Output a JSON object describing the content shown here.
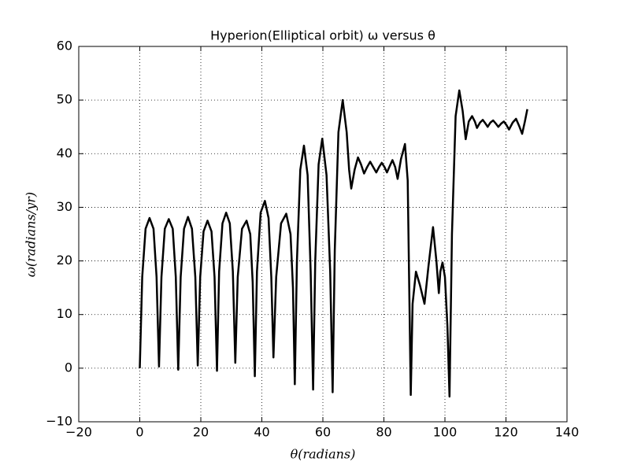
{
  "chart_data": {
    "type": "line",
    "title": "Hyperion(Elliptical orbit) ω versus θ",
    "x_label": "θ(radians)",
    "y_label": "ω(radians/yr)",
    "grid": true,
    "xlim": [
      -20,
      140
    ],
    "ylim": [
      -10,
      60
    ],
    "xticks": [
      {
        "value": -20,
        "label": "−20"
      },
      0,
      20,
      40,
      60,
      80,
      100,
      120,
      140
    ],
    "yticks": [
      {
        "value": -10,
        "label": "−10"
      },
      0,
      10,
      20,
      30,
      40,
      50,
      60
    ],
    "x": [
      0,
      0.8,
      1.9,
      3.2,
      4.5,
      5.5,
      6.3,
      7.1,
      8.2,
      9.5,
      10.8,
      11.8,
      12.6,
      13.4,
      14.5,
      15.8,
      17.1,
      18.2,
      19,
      19.8,
      20.9,
      22.2,
      23.5,
      24.5,
      25.3,
      26,
      27.1,
      28.3,
      29.5,
      30.5,
      31.3,
      32.1,
      33.5,
      35,
      36.2,
      37,
      37.7,
      38.4,
      39.6,
      41,
      42.2,
      43.1,
      43.8,
      44.7,
      46.3,
      48,
      49.4,
      50.2,
      50.8,
      51.5,
      52.6,
      53.8,
      55,
      56,
      56.8,
      57.5,
      58.6,
      59.8,
      61.2,
      62.4,
      63.2,
      63.9,
      65.1,
      66.5,
      67.8,
      68.6,
      69.3,
      70.4,
      71.5,
      72.5,
      73.5,
      74.5,
      75.5,
      76.5,
      77.5,
      78.4,
      79.3,
      80.2,
      81,
      82,
      82.8,
      83.7,
      84.5,
      85.6,
      86.9,
      87.8,
      88.3,
      88.8,
      89.4,
      90.5,
      91.8,
      93.3,
      94.6,
      96.1,
      97.2,
      98,
      98.5,
      99.2,
      100,
      100.8,
      101.5,
      102.3,
      103.5,
      104.7,
      105.8,
      106.8,
      107.8,
      108.9,
      109.8,
      110.5,
      111.5,
      112.4,
      113.2,
      114,
      114.9,
      115.8,
      116.7,
      117.5,
      118.4,
      119.3,
      120.2,
      121,
      122.2,
      123.3,
      124.3,
      125.3,
      126.2,
      127
    ],
    "series": [
      {
        "color": "#000000",
        "values": [
          0,
          17,
          26,
          28,
          26,
          17,
          0.3,
          17,
          26,
          27.8,
          26,
          17,
          -0.3,
          17,
          26,
          28.2,
          26,
          17,
          0.5,
          17,
          25.5,
          27.5,
          25.5,
          17,
          -0.5,
          18,
          27,
          29,
          27,
          18,
          1,
          17,
          26,
          27.5,
          25,
          16,
          -1.5,
          18,
          29,
          31.2,
          28,
          17,
          2,
          17,
          27,
          28.8,
          25,
          15,
          -3,
          20,
          37,
          41.5,
          36,
          18,
          -4,
          20,
          38,
          42.8,
          36,
          18,
          -4.5,
          22,
          44,
          50,
          44,
          37,
          33.5,
          37,
          39.3,
          38,
          36.3,
          37.5,
          38.5,
          37.5,
          36.5,
          37.5,
          38.3,
          37.5,
          36.5,
          37.8,
          38.8,
          37.5,
          35.3,
          39,
          41.8,
          35,
          15,
          -5,
          12,
          18,
          15.5,
          12,
          19,
          26.3,
          20,
          14,
          18,
          19.7,
          17,
          8,
          -5.3,
          25,
          47,
          51.8,
          48,
          42.7,
          46,
          47,
          46,
          44.8,
          45.8,
          46.3,
          45.7,
          45,
          45.8,
          46.2,
          45.6,
          45,
          45.6,
          46,
          45.3,
          44.5,
          45.8,
          46.5,
          45.2,
          43.7,
          46,
          48.3
        ]
      }
    ]
  }
}
